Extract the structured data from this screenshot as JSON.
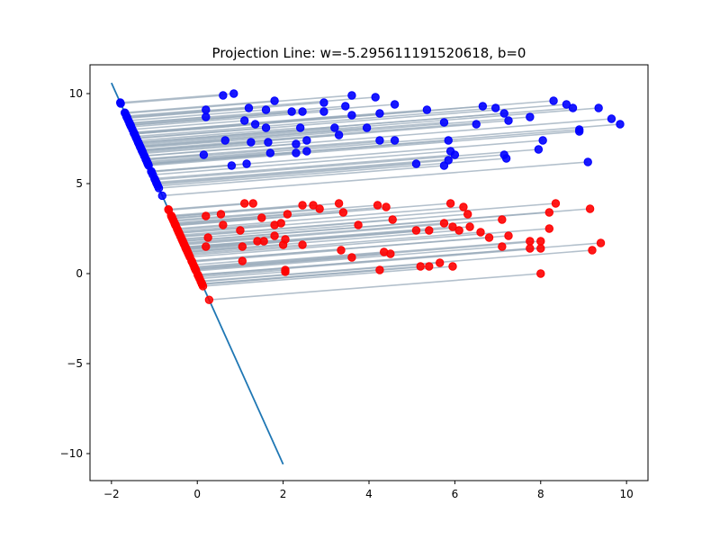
{
  "chart_data": {
    "type": "scatter",
    "title": "Projection Line: w=-5.295611191520618, b=0",
    "xlabel": "",
    "ylabel": "",
    "xlim": [
      -2.5,
      10.5
    ],
    "ylim": [
      -11.5,
      11.6
    ],
    "xticks": [
      -2,
      0,
      2,
      4,
      6,
      8,
      10
    ],
    "yticks": [
      -10,
      -5,
      0,
      5,
      10
    ],
    "grid": false,
    "legend": "none",
    "projection_line": {
      "w": -5.295611191520618,
      "b": 0,
      "x_range": [
        -2,
        2
      ],
      "color": "#1f77b4"
    },
    "projection_segment_color": "#9aabbb",
    "series": [
      {
        "color": "#0000ff",
        "points": [
          [
            0.6,
            9.9
          ],
          [
            0.85,
            10.0
          ],
          [
            2.95,
            9.5
          ],
          [
            3.6,
            9.9
          ],
          [
            4.15,
            9.8
          ],
          [
            4.6,
            9.4
          ],
          [
            8.3,
            9.6
          ],
          [
            8.6,
            9.4
          ],
          [
            9.35,
            9.2
          ],
          [
            0.2,
            9.1
          ],
          [
            1.2,
            9.2
          ],
          [
            1.6,
            9.1
          ],
          [
            1.8,
            9.6
          ],
          [
            2.2,
            9.0
          ],
          [
            2.45,
            9.0
          ],
          [
            2.95,
            9.0
          ],
          [
            3.45,
            9.3
          ],
          [
            5.35,
            9.1
          ],
          [
            6.65,
            9.3
          ],
          [
            6.95,
            9.2
          ],
          [
            7.15,
            8.9
          ],
          [
            7.75,
            8.7
          ],
          [
            8.75,
            9.2
          ],
          [
            0.2,
            8.7
          ],
          [
            1.1,
            8.5
          ],
          [
            1.35,
            8.3
          ],
          [
            1.6,
            8.1
          ],
          [
            2.4,
            8.1
          ],
          [
            3.2,
            8.1
          ],
          [
            3.3,
            7.7
          ],
          [
            3.6,
            8.8
          ],
          [
            3.95,
            8.1
          ],
          [
            4.25,
            8.9
          ],
          [
            5.75,
            8.4
          ],
          [
            6.5,
            8.3
          ],
          [
            7.25,
            8.5
          ],
          [
            8.9,
            7.9
          ],
          [
            9.65,
            8.6
          ],
          [
            9.85,
            8.3
          ],
          [
            0.65,
            7.4
          ],
          [
            1.25,
            7.3
          ],
          [
            1.65,
            7.3
          ],
          [
            2.3,
            7.2
          ],
          [
            2.55,
            7.4
          ],
          [
            4.25,
            7.4
          ],
          [
            4.6,
            7.4
          ],
          [
            5.85,
            7.4
          ],
          [
            8.05,
            7.4
          ],
          [
            8.9,
            8.0
          ],
          [
            0.15,
            6.6
          ],
          [
            1.7,
            6.7
          ],
          [
            2.3,
            6.7
          ],
          [
            2.55,
            6.8
          ],
          [
            5.9,
            6.8
          ],
          [
            6.0,
            6.6
          ],
          [
            7.15,
            6.6
          ],
          [
            7.2,
            6.4
          ],
          [
            7.95,
            6.9
          ],
          [
            0.8,
            6.0
          ],
          [
            1.15,
            6.1
          ],
          [
            5.1,
            6.1
          ],
          [
            5.75,
            6.0
          ],
          [
            5.85,
            6.3
          ],
          [
            9.1,
            6.2
          ]
        ]
      },
      {
        "color": "#ff0000",
        "points": [
          [
            1.1,
            3.9
          ],
          [
            1.3,
            3.9
          ],
          [
            2.45,
            3.8
          ],
          [
            2.7,
            3.8
          ],
          [
            2.85,
            3.6
          ],
          [
            3.3,
            3.9
          ],
          [
            4.2,
            3.8
          ],
          [
            4.4,
            3.7
          ],
          [
            5.9,
            3.9
          ],
          [
            6.2,
            3.7
          ],
          [
            8.35,
            3.9
          ],
          [
            9.15,
            3.6
          ],
          [
            0.2,
            3.2
          ],
          [
            0.55,
            3.3
          ],
          [
            1.5,
            3.1
          ],
          [
            2.1,
            3.3
          ],
          [
            3.4,
            3.4
          ],
          [
            4.55,
            3.0
          ],
          [
            6.3,
            3.3
          ],
          [
            7.1,
            3.0
          ],
          [
            8.2,
            3.4
          ],
          [
            0.6,
            2.7
          ],
          [
            1.0,
            2.4
          ],
          [
            1.8,
            2.7
          ],
          [
            1.95,
            2.8
          ],
          [
            3.75,
            2.7
          ],
          [
            5.1,
            2.4
          ],
          [
            5.4,
            2.4
          ],
          [
            5.75,
            2.8
          ],
          [
            5.95,
            2.6
          ],
          [
            6.1,
            2.4
          ],
          [
            6.35,
            2.6
          ],
          [
            6.6,
            2.3
          ],
          [
            6.8,
            2.0
          ],
          [
            7.25,
            2.1
          ],
          [
            8.2,
            2.5
          ],
          [
            0.25,
            2.0
          ],
          [
            1.05,
            1.5
          ],
          [
            1.4,
            1.8
          ],
          [
            1.55,
            1.8
          ],
          [
            1.8,
            2.1
          ],
          [
            2.0,
            1.6
          ],
          [
            2.05,
            1.9
          ],
          [
            2.45,
            1.6
          ],
          [
            3.35,
            1.3
          ],
          [
            4.35,
            1.2
          ],
          [
            4.5,
            1.1
          ],
          [
            7.1,
            1.5
          ],
          [
            7.75,
            1.8
          ],
          [
            7.75,
            1.4
          ],
          [
            8.0,
            1.8
          ],
          [
            8.0,
            1.4
          ],
          [
            9.2,
            1.3
          ],
          [
            9.4,
            1.7
          ],
          [
            0.2,
            1.5
          ],
          [
            1.05,
            0.7
          ],
          [
            3.6,
            0.9
          ],
          [
            5.2,
            0.4
          ],
          [
            5.4,
            0.4
          ],
          [
            5.65,
            0.6
          ],
          [
            5.95,
            0.4
          ],
          [
            2.05,
            0.2
          ],
          [
            2.05,
            0.1
          ],
          [
            4.25,
            0.2
          ],
          [
            8.0,
            0.0
          ]
        ]
      }
    ]
  }
}
